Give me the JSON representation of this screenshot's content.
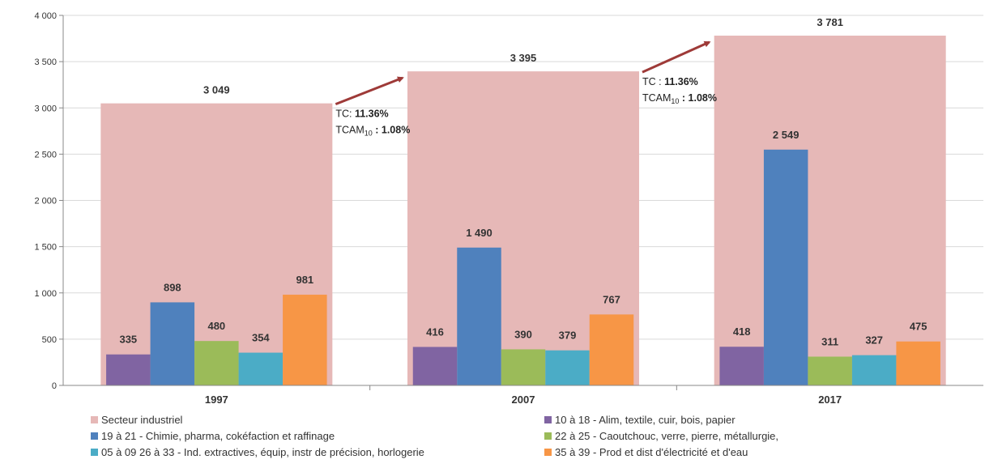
{
  "chart_data": {
    "type": "bar",
    "categories": [
      "1997",
      "2007",
      "2017"
    ],
    "ylim": [
      0,
      4000
    ],
    "yticks": [
      "0",
      "500",
      "1 000",
      "1 500",
      "2 000",
      "2 500",
      "3 000",
      "3 500",
      "4 000"
    ],
    "ytick_values": [
      0,
      500,
      1000,
      1500,
      2000,
      2500,
      3000,
      3500,
      4000
    ],
    "total_series": {
      "name": "Secteur industriel",
      "color": "#e6b8b7",
      "values": [
        3049,
        3395,
        3781
      ],
      "labels": [
        "3 049",
        "3 395",
        "3 781"
      ]
    },
    "series": [
      {
        "name": "10 à 18 - Alim, textile, cuir, bois, papier",
        "color": "#8064a2",
        "values": [
          335,
          416,
          418
        ],
        "labels": [
          "335",
          "416",
          "418"
        ]
      },
      {
        "name": "19 à 21 - Chimie, pharma, cokéfaction et raffinage",
        "color": "#4f81bd",
        "values": [
          898,
          1490,
          2549
        ],
        "labels": [
          "898",
          "1 490",
          "2 549"
        ]
      },
      {
        "name": "22 à 25 - Caoutchouc, verre, pierre, métallurgie,",
        "color": "#9bbb59",
        "values": [
          480,
          390,
          311
        ],
        "labels": [
          "480",
          "390",
          "311"
        ]
      },
      {
        "name": "05 à 09  26 à 33 - Ind. extractives,  équip,  instr de précision, horlogerie",
        "color": "#4bacc6",
        "values": [
          354,
          379,
          327
        ],
        "labels": [
          "354",
          "379",
          "327"
        ]
      },
      {
        "name": "35 à 39 - Prod et dist d'électricité et d'eau",
        "color": "#f79646",
        "values": [
          981,
          767,
          475
        ],
        "labels": [
          "981",
          "767",
          "475"
        ]
      }
    ],
    "annotations": [
      {
        "tc_label": "TC: ",
        "tc_value": "11.36%",
        "tcam_label": "TCAM",
        "tcam_sub": "10",
        "tcam_sep": " : ",
        "tcam_value": "1.08%"
      },
      {
        "tc_label": "TC : ",
        "tc_value": "11.36%",
        "tcam_label": "TCAM",
        "tcam_sub": "10",
        "tcam_sep": " : ",
        "tcam_value": "1.08%"
      }
    ],
    "arrow_color": "#9e3a38",
    "legend_order": [
      "Secteur industriel",
      "10 à 18 - Alim, textile, cuir, bois, papier",
      "19 à 21 - Chimie, pharma, cokéfaction et raffinage",
      "22 à 25 - Caoutchouc, verre, pierre, métallurgie,",
      "05 à 09  26 à 33 - Ind. extractives,  équip,  instr de précision, horlogerie",
      "35 à 39 - Prod et dist d'électricité et d'eau"
    ]
  }
}
